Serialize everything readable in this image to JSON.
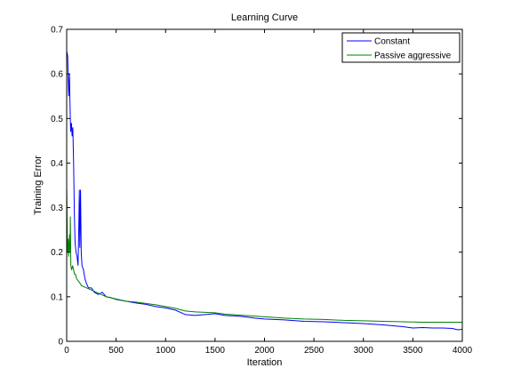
{
  "chart_data": {
    "type": "line",
    "title": "Learning Curve",
    "xlabel": "Iteration",
    "ylabel": "Training Error",
    "xlim": [
      0,
      4000
    ],
    "ylim": [
      0,
      0.7
    ],
    "xticks": [
      0,
      500,
      1000,
      1500,
      2000,
      2500,
      3000,
      3500,
      4000
    ],
    "xtick_labels": [
      "0",
      "500",
      "1000",
      "1500",
      "2000",
      "2500",
      "3000",
      "3500",
      "4000"
    ],
    "yticks": [
      0,
      0.1,
      0.2,
      0.3,
      0.4,
      0.5,
      0.6,
      0.7
    ],
    "ytick_labels": [
      "0",
      "0.1",
      "0.2",
      "0.3",
      "0.4",
      "0.5",
      "0.6",
      "0.7"
    ],
    "grid": false,
    "legend_position": "top-right",
    "series": [
      {
        "name": "Constant",
        "color": "#0000ff",
        "points": [
          [
            1,
            0.65
          ],
          [
            10,
            0.64
          ],
          [
            20,
            0.55
          ],
          [
            28,
            0.6
          ],
          [
            35,
            0.52
          ],
          [
            40,
            0.47
          ],
          [
            48,
            0.49
          ],
          [
            55,
            0.46
          ],
          [
            62,
            0.48
          ],
          [
            70,
            0.4
          ],
          [
            78,
            0.28
          ],
          [
            85,
            0.22
          ],
          [
            95,
            0.2
          ],
          [
            105,
            0.19
          ],
          [
            115,
            0.17
          ],
          [
            122,
            0.25
          ],
          [
            128,
            0.34
          ],
          [
            133,
            0.21
          ],
          [
            140,
            0.34
          ],
          [
            147,
            0.2
          ],
          [
            155,
            0.17
          ],
          [
            170,
            0.16
          ],
          [
            185,
            0.14
          ],
          [
            200,
            0.13
          ],
          [
            220,
            0.12
          ],
          [
            250,
            0.12
          ],
          [
            280,
            0.11
          ],
          [
            320,
            0.105
          ],
          [
            360,
            0.11
          ],
          [
            400,
            0.1
          ],
          [
            450,
            0.098
          ],
          [
            500,
            0.094
          ],
          [
            600,
            0.09
          ],
          [
            700,
            0.086
          ],
          [
            800,
            0.083
          ],
          [
            900,
            0.078
          ],
          [
            1000,
            0.075
          ],
          [
            1100,
            0.07
          ],
          [
            1200,
            0.06
          ],
          [
            1300,
            0.058
          ],
          [
            1400,
            0.06
          ],
          [
            1500,
            0.062
          ],
          [
            1600,
            0.058
          ],
          [
            1700,
            0.057
          ],
          [
            1800,
            0.055
          ],
          [
            1900,
            0.052
          ],
          [
            2000,
            0.05
          ],
          [
            2200,
            0.048
          ],
          [
            2400,
            0.045
          ],
          [
            2600,
            0.044
          ],
          [
            2800,
            0.042
          ],
          [
            3000,
            0.04
          ],
          [
            3200,
            0.037
          ],
          [
            3400,
            0.033
          ],
          [
            3500,
            0.03
          ],
          [
            3600,
            0.031
          ],
          [
            3700,
            0.03
          ],
          [
            3800,
            0.03
          ],
          [
            3900,
            0.029
          ],
          [
            3950,
            0.026
          ],
          [
            4000,
            0.027
          ]
        ]
      },
      {
        "name": "Passive aggressive",
        "color": "#008000",
        "points": [
          [
            1,
            0.34
          ],
          [
            5,
            0.26
          ],
          [
            10,
            0.2
          ],
          [
            15,
            0.23
          ],
          [
            20,
            0.19
          ],
          [
            25,
            0.22
          ],
          [
            30,
            0.24
          ],
          [
            33,
            0.2
          ],
          [
            37,
            0.28
          ],
          [
            42,
            0.17
          ],
          [
            50,
            0.16
          ],
          [
            60,
            0.17
          ],
          [
            70,
            0.16
          ],
          [
            80,
            0.15
          ],
          [
            90,
            0.15
          ],
          [
            100,
            0.14
          ],
          [
            120,
            0.135
          ],
          [
            150,
            0.125
          ],
          [
            200,
            0.12
          ],
          [
            250,
            0.115
          ],
          [
            300,
            0.11
          ],
          [
            350,
            0.105
          ],
          [
            400,
            0.1
          ],
          [
            500,
            0.095
          ],
          [
            600,
            0.09
          ],
          [
            700,
            0.088
          ],
          [
            800,
            0.085
          ],
          [
            900,
            0.082
          ],
          [
            1000,
            0.078
          ],
          [
            1100,
            0.074
          ],
          [
            1200,
            0.068
          ],
          [
            1300,
            0.066
          ],
          [
            1400,
            0.065
          ],
          [
            1500,
            0.064
          ],
          [
            1600,
            0.061
          ],
          [
            1800,
            0.058
          ],
          [
            2000,
            0.055
          ],
          [
            2200,
            0.052
          ],
          [
            2400,
            0.05
          ],
          [
            2600,
            0.049
          ],
          [
            2800,
            0.047
          ],
          [
            3000,
            0.046
          ],
          [
            3200,
            0.045
          ],
          [
            3400,
            0.044
          ],
          [
            3600,
            0.043
          ],
          [
            3800,
            0.043
          ],
          [
            4000,
            0.043
          ]
        ]
      }
    ]
  }
}
